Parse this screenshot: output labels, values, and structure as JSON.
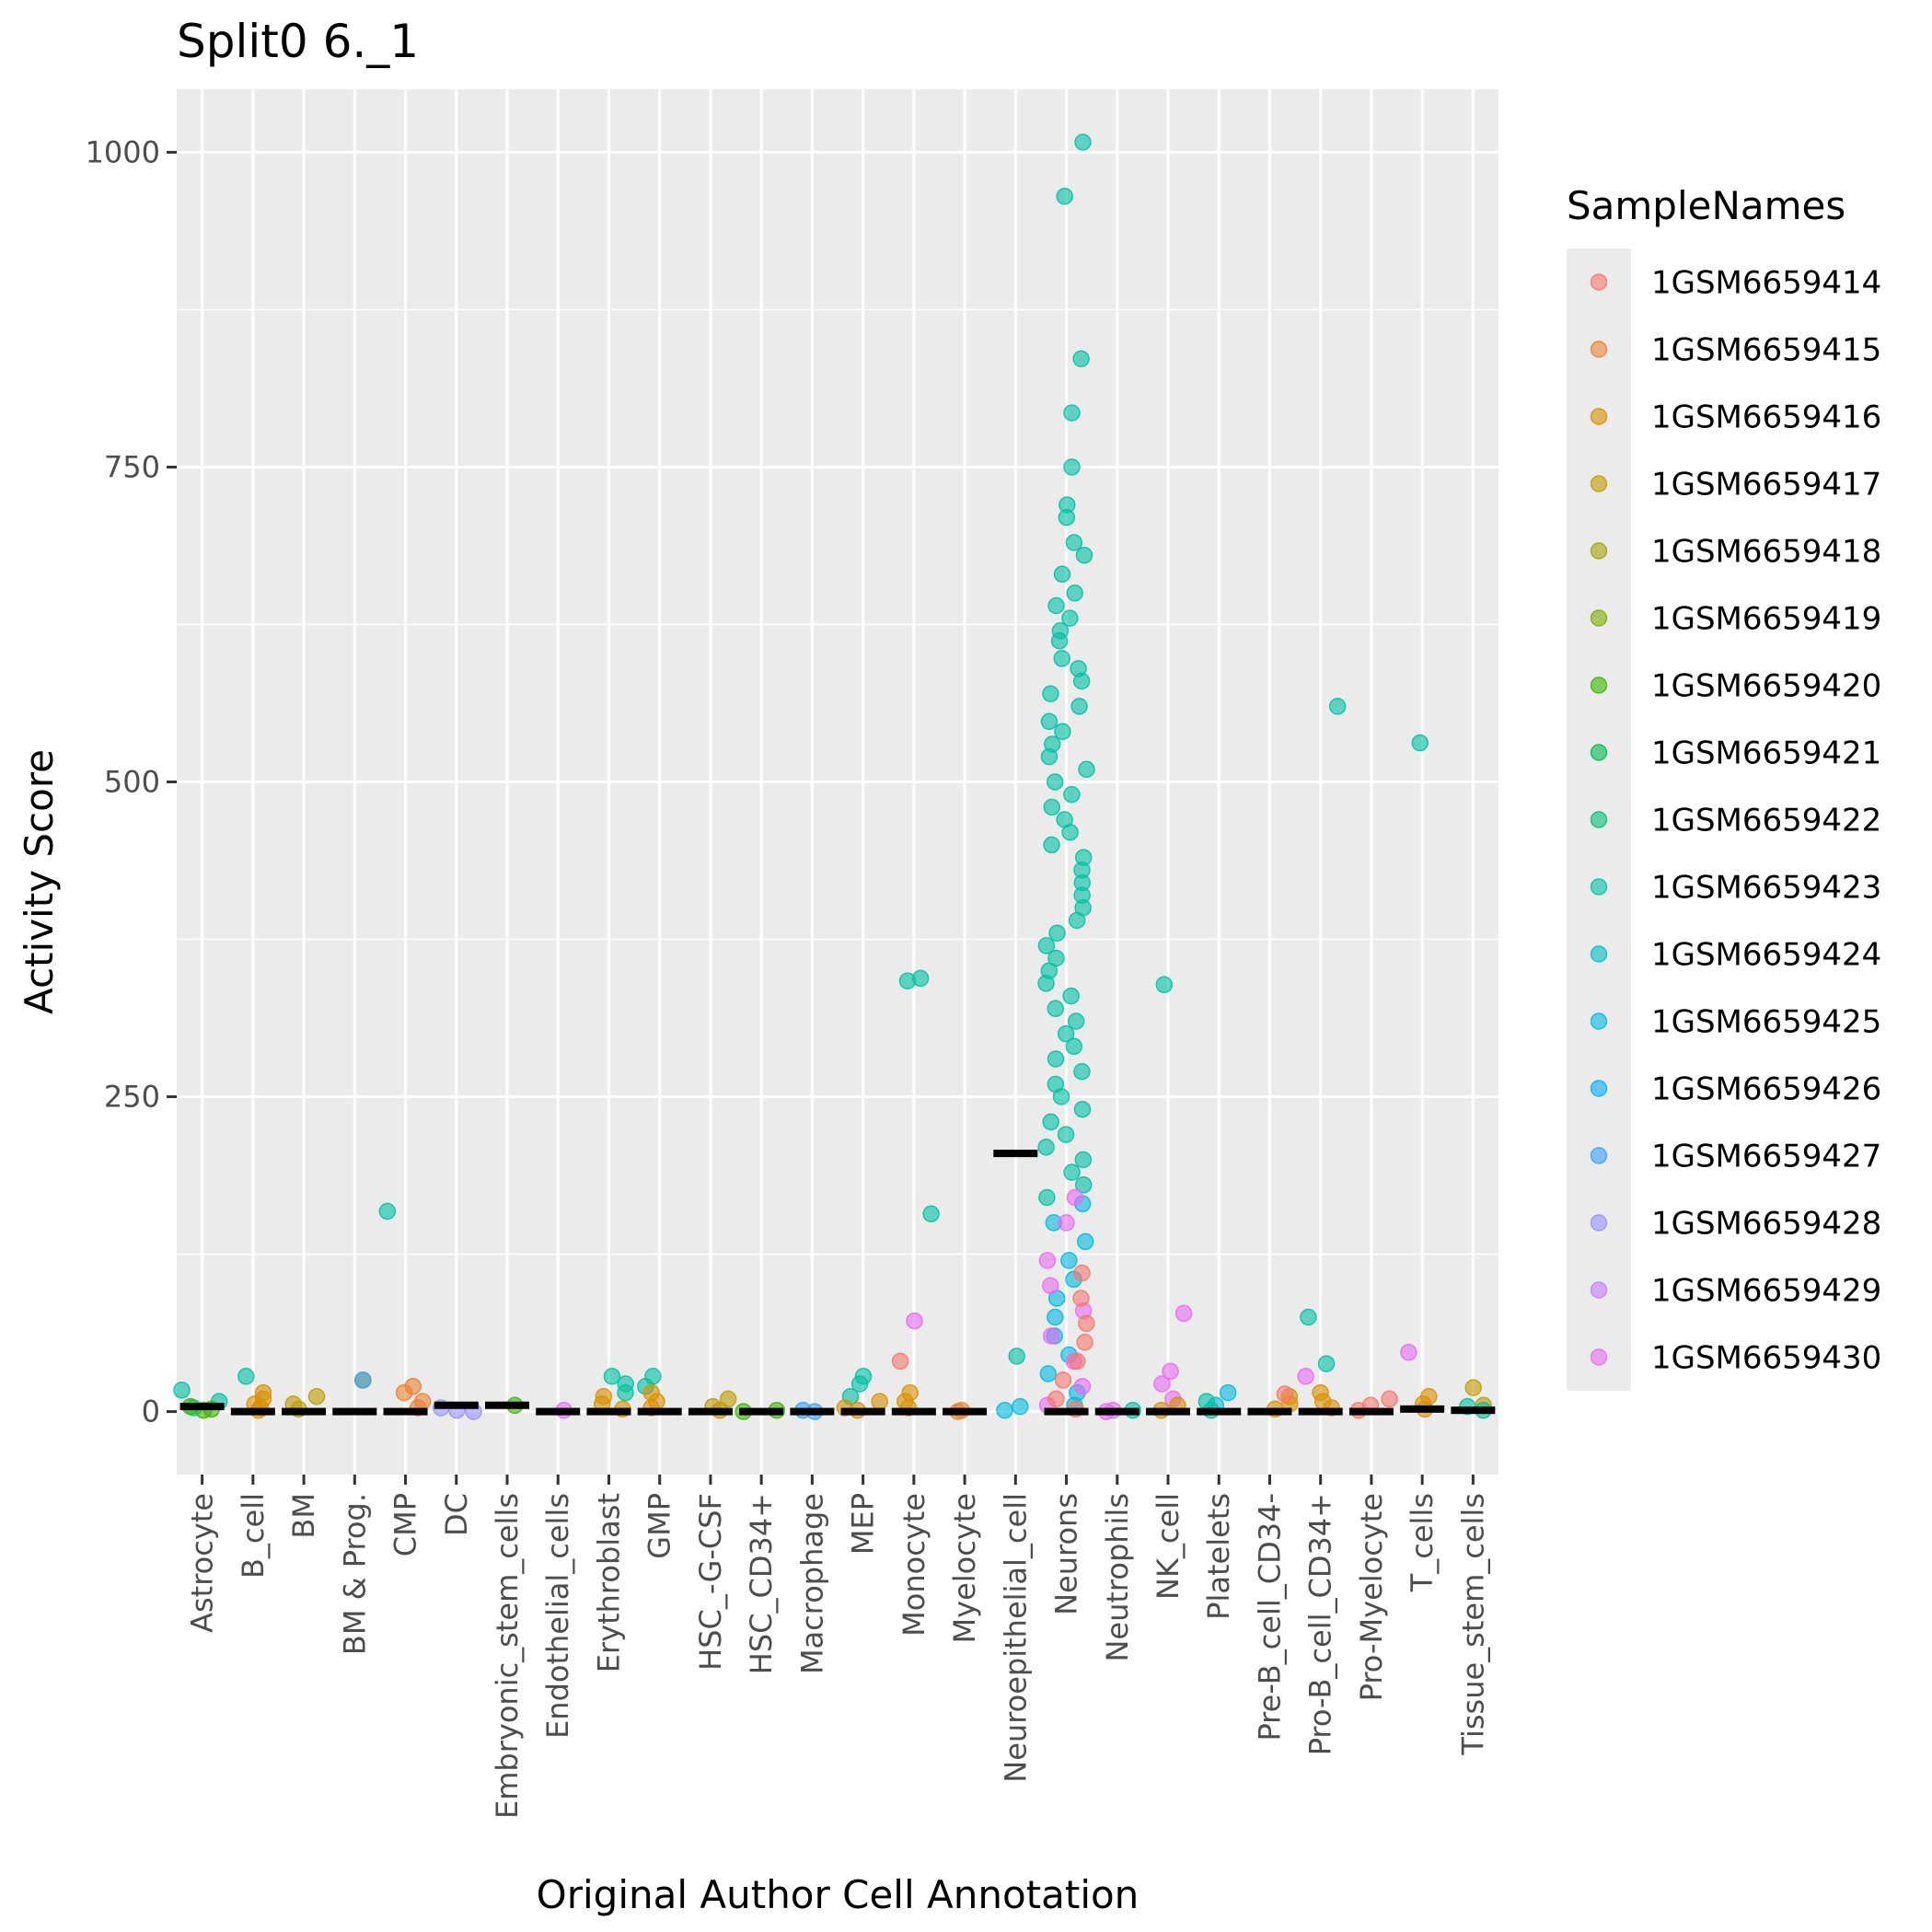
{
  "chart_data": {
    "type": "scatter",
    "title": "Split0 6._1",
    "xlabel": "Original Author Cell Annotation",
    "ylabel": "Activity Score",
    "ylim": [
      -50,
      1050
    ],
    "yticks": [
      0,
      250,
      500,
      750,
      1000
    ],
    "grid": true,
    "legend_position": "right",
    "legend_title": "SampleNames",
    "categories": [
      "Astrocyte",
      "B_cell",
      "BM",
      "BM & Prog.",
      "CMP",
      "DC",
      "Embryonic_stem_cells",
      "Endothelial_cells",
      "Erythroblast",
      "GMP",
      "HSC_-G-CSF",
      "HSC_CD34+",
      "Macrophage",
      "MEP",
      "Monocyte",
      "Myelocyte",
      "Neuroepithelial_cell",
      "Neurons",
      "Neutrophils",
      "NK_cell",
      "Platelets",
      "Pre-B_cell_CD34-",
      "Pro-B_cell_CD34+",
      "Pro-Myelocyte",
      "T_cells",
      "Tissue_stem_cells"
    ],
    "legend": [
      {
        "name": "1GSM6659414",
        "color": "#F8766D"
      },
      {
        "name": "1GSM6659415",
        "color": "#EA8331"
      },
      {
        "name": "1GSM6659416",
        "color": "#D89000"
      },
      {
        "name": "1GSM6659417",
        "color": "#C09B00"
      },
      {
        "name": "1GSM6659418",
        "color": "#A3A500"
      },
      {
        "name": "1GSM6659419",
        "color": "#7CAE00"
      },
      {
        "name": "1GSM6659420",
        "color": "#39B600"
      },
      {
        "name": "1GSM6659421",
        "color": "#00BB4E"
      },
      {
        "name": "1GSM6659422",
        "color": "#00BF7D"
      },
      {
        "name": "1GSM6659423",
        "color": "#00C1A3"
      },
      {
        "name": "1GSM6659424",
        "color": "#00BFC4"
      },
      {
        "name": "1GSM6659425",
        "color": "#00BAE0"
      },
      {
        "name": "1GSM6659426",
        "color": "#00B0F6"
      },
      {
        "name": "1GSM6659427",
        "color": "#35A2FF"
      },
      {
        "name": "1GSM6659428",
        "color": "#9590FF"
      },
      {
        "name": "1GSM6659429",
        "color": "#C77CFF"
      },
      {
        "name": "1GSM6659430",
        "color": "#E76BF3"
      }
    ],
    "medians": [
      4,
      0,
      0,
      0,
      0,
      5,
      5,
      0,
      0,
      0,
      0,
      0,
      0,
      0,
      0,
      0,
      205,
      0,
      0,
      0,
      0,
      0,
      0,
      0,
      2,
      1
    ],
    "points": [
      {
        "category": "Astrocyte",
        "color": "#00C1A3",
        "values": [
          17,
          8,
          3
        ]
      },
      {
        "category": "Astrocyte",
        "color": "#39B600",
        "values": [
          4,
          2,
          1
        ]
      },
      {
        "category": "B_cell",
        "color": "#00C1A3",
        "values": [
          28
        ]
      },
      {
        "category": "B_cell",
        "color": "#D89000",
        "values": [
          15,
          10,
          6,
          3,
          1
        ]
      },
      {
        "category": "BM",
        "color": "#C09B00",
        "values": [
          12,
          6,
          2
        ]
      },
      {
        "category": "BM & Prog.",
        "color": "#C09B00",
        "values": [
          25
        ]
      },
      {
        "category": "BM & Prog.",
        "color": "#35A2FF",
        "values": [
          25
        ]
      },
      {
        "category": "CMP",
        "color": "#00C1A3",
        "values": [
          159
        ]
      },
      {
        "category": "CMP",
        "color": "#EA8331",
        "values": [
          20,
          15,
          8,
          3
        ]
      },
      {
        "category": "DC",
        "color": "#9590FF",
        "values": [
          3,
          1,
          0
        ]
      },
      {
        "category": "Embryonic_stem_cells",
        "color": "#39B600",
        "values": [
          5
        ]
      },
      {
        "category": "Endothelial_cells",
        "color": "#E76BF3",
        "values": [
          1
        ]
      },
      {
        "category": "Erythroblast",
        "color": "#00C1A3",
        "values": [
          28,
          22,
          15
        ]
      },
      {
        "category": "Erythroblast",
        "color": "#D89000",
        "values": [
          12,
          6,
          2
        ]
      },
      {
        "category": "GMP",
        "color": "#00C1A3",
        "values": [
          28,
          20
        ]
      },
      {
        "category": "GMP",
        "color": "#D89000",
        "values": [
          15,
          8,
          3
        ]
      },
      {
        "category": "HSC_-G-CSF",
        "color": "#C09B00",
        "values": [
          10,
          4,
          1
        ]
      },
      {
        "category": "HSC_CD34+",
        "color": "#39B600",
        "values": [
          1,
          0
        ]
      },
      {
        "category": "Macrophage",
        "color": "#35A2FF",
        "values": [
          1,
          0
        ]
      },
      {
        "category": "MEP",
        "color": "#00C1A3",
        "values": [
          28,
          22,
          12
        ]
      },
      {
        "category": "MEP",
        "color": "#D89000",
        "values": [
          8,
          3,
          1
        ]
      },
      {
        "category": "Monocyte",
        "color": "#00C1A3",
        "values": [
          342,
          344,
          157
        ]
      },
      {
        "category": "Monocyte",
        "color": "#E76BF3",
        "values": [
          72
        ]
      },
      {
        "category": "Monocyte",
        "color": "#F8766D",
        "values": [
          40
        ]
      },
      {
        "category": "Monocyte",
        "color": "#D89000",
        "values": [
          15,
          8,
          3
        ]
      },
      {
        "category": "Myelocyte",
        "color": "#EA8331",
        "values": [
          1,
          0
        ]
      },
      {
        "category": "Neuroepithelial_cell",
        "color": "#00C1A3",
        "values": [
          44
        ]
      },
      {
        "category": "Neuroepithelial_cell",
        "color": "#00BAE0",
        "values": [
          4,
          1
        ]
      },
      {
        "category": "Neurons",
        "color": "#00C1A3",
        "values": [
          1008,
          965,
          836,
          793,
          750,
          720,
          710,
          690,
          680,
          665,
          650,
          640,
          630,
          620,
          612,
          598,
          590,
          580,
          570,
          560,
          548,
          540,
          530,
          520,
          510,
          500,
          490,
          480,
          470,
          460,
          450,
          440,
          430,
          420,
          410,
          400,
          390,
          380,
          370,
          360,
          350,
          340,
          330,
          320,
          310,
          300,
          290,
          280,
          270,
          260,
          250,
          240,
          230,
          220,
          210,
          200,
          190,
          180,
          170
        ]
      },
      {
        "category": "Neurons",
        "color": "#00BAE0",
        "values": [
          165,
          150,
          135,
          120,
          105,
          90,
          75,
          60,
          45,
          30,
          15,
          5
        ]
      },
      {
        "category": "Neurons",
        "color": "#E76BF3",
        "values": [
          170,
          150,
          120,
          100,
          80,
          60,
          40,
          20,
          5
        ]
      },
      {
        "category": "Neurons",
        "color": "#F8766D",
        "values": [
          110,
          90,
          70,
          55,
          40,
          25,
          10,
          2
        ]
      },
      {
        "category": "Neutrophils",
        "color": "#00C1A3",
        "values": [
          1
        ]
      },
      {
        "category": "Neutrophils",
        "color": "#E76BF3",
        "values": [
          1,
          0
        ]
      },
      {
        "category": "NK_cell",
        "color": "#00C1A3",
        "values": [
          339
        ]
      },
      {
        "category": "NK_cell",
        "color": "#E76BF3",
        "values": [
          78,
          32,
          22,
          10
        ]
      },
      {
        "category": "NK_cell",
        "color": "#D89000",
        "values": [
          5,
          1
        ]
      },
      {
        "category": "Platelets",
        "color": "#00BAE0",
        "values": [
          15,
          5
        ]
      },
      {
        "category": "Platelets",
        "color": "#00C1A3",
        "values": [
          8,
          1
        ]
      },
      {
        "category": "Pre-B_cell_CD34-",
        "color": "#D89000",
        "values": [
          12,
          6,
          2
        ]
      },
      {
        "category": "Pre-B_cell_CD34-",
        "color": "#F8766D",
        "values": [
          14
        ]
      },
      {
        "category": "Pro-B_cell_CD34+",
        "color": "#00C1A3",
        "values": [
          560,
          75,
          38
        ]
      },
      {
        "category": "Pro-B_cell_CD34+",
        "color": "#E76BF3",
        "values": [
          28
        ]
      },
      {
        "category": "Pro-B_cell_CD34+",
        "color": "#D89000",
        "values": [
          15,
          8,
          3
        ]
      },
      {
        "category": "Pro-Myelocyte",
        "color": "#F8766D",
        "values": [
          10,
          5,
          1
        ]
      },
      {
        "category": "T_cells",
        "color": "#00C1A3",
        "values": [
          531
        ]
      },
      {
        "category": "T_cells",
        "color": "#E76BF3",
        "values": [
          47
        ]
      },
      {
        "category": "T_cells",
        "color": "#D89000",
        "values": [
          12,
          6,
          2
        ]
      },
      {
        "category": "Tissue_stem_cells",
        "color": "#C09B00",
        "values": [
          19,
          5
        ]
      },
      {
        "category": "Tissue_stem_cells",
        "color": "#00C1A3",
        "values": [
          4,
          1
        ]
      }
    ]
  }
}
